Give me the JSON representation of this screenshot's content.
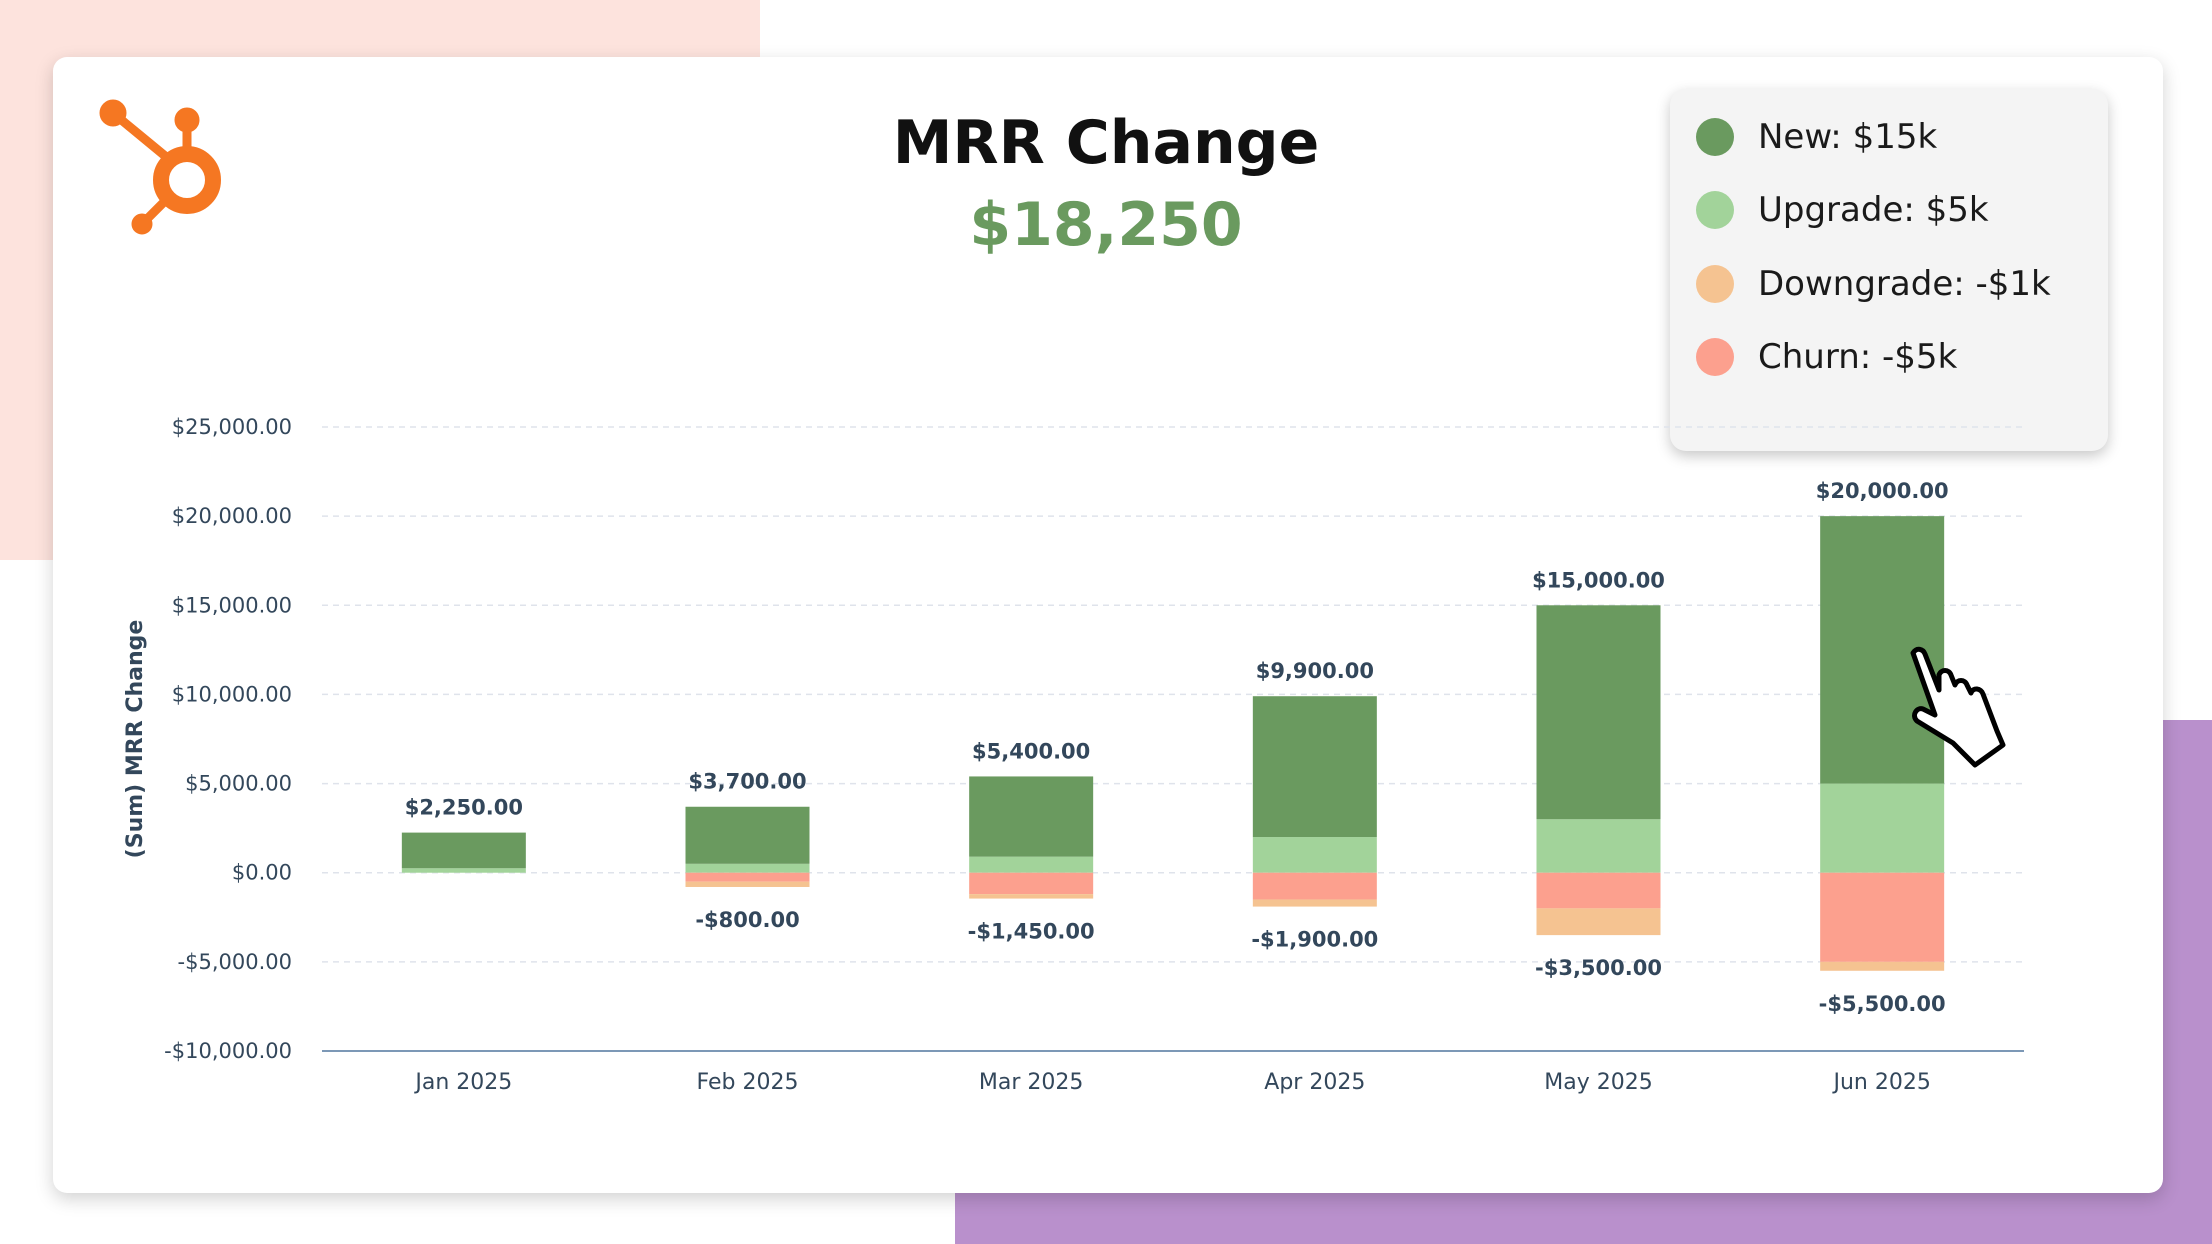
{
  "title": "MRR Change",
  "total": "$18,250",
  "colors": {
    "total": "#6a9a5f",
    "new": "#6a9a5f",
    "upgrade": "#a2d39a",
    "downgrade": "#f5c391",
    "churn": "#fca08e",
    "logo": "#f57722",
    "label": "#33475b"
  },
  "legend": [
    {
      "label": "New: $15k",
      "color": "#6a9a5f"
    },
    {
      "label": "Upgrade: $5k",
      "color": "#a2d39a"
    },
    {
      "label": "Downgrade: -$1k",
      "color": "#f5c391"
    },
    {
      "label": "Churn: -$5k",
      "color": "#fca08e"
    }
  ],
  "logo_icon": "hubspot-sprocket-icon",
  "cursor_icon": "hand-pointer-icon",
  "chart_data": {
    "type": "bar",
    "stacked": true,
    "categories": [
      "Jan 2025",
      "Feb 2025",
      "Mar 2025",
      "Apr 2025",
      "May 2025",
      "Jun 2025"
    ],
    "series": [
      {
        "name": "Upgrade",
        "color": "#a2d39a",
        "values": [
          250,
          500,
          900,
          2000,
          3000,
          5000
        ]
      },
      {
        "name": "New",
        "color": "#6a9a5f",
        "values": [
          2000,
          3200,
          4500,
          7900,
          12000,
          15000
        ]
      },
      {
        "name": "Churn",
        "color": "#fca08e",
        "values": [
          0,
          -500,
          -1200,
          -1500,
          -2000,
          -5000
        ]
      },
      {
        "name": "Downgrade",
        "color": "#f5c391",
        "values": [
          0,
          -300,
          -250,
          -400,
          -1500,
          -500
        ]
      }
    ],
    "positive_totals": [
      "$2,250.00",
      "$3,700.00",
      "$5,400.00",
      "$9,900.00",
      "$15,000.00",
      "$20,000.00"
    ],
    "negative_totals": [
      "",
      "-$800.00",
      "-$1,450.00",
      "-$1,900.00",
      "-$3,500.00",
      "-$5,500.00"
    ],
    "ylabel": "(Sum) MRR Change",
    "ylim": [
      -10000,
      25000
    ],
    "yticks": [
      25000,
      20000,
      15000,
      10000,
      5000,
      0,
      -5000,
      -10000
    ],
    "ytick_labels": [
      "$25,000.00",
      "$20,000.00",
      "$15,000.00",
      "$10,000.00",
      "$5,000.00",
      "$0.00",
      "-$5,000.00",
      "-$10,000.00"
    ],
    "grid": true
  }
}
